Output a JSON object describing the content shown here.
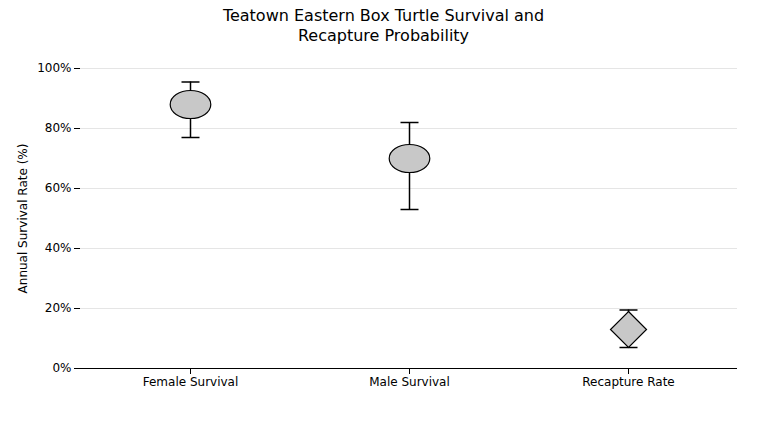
{
  "chart_data": {
    "type": "errorbar",
    "title": "Teatown Eastern Box Turtle Survival and\nRecapture Probability",
    "ylabel": "Annual Survival Rate (%)",
    "categories": [
      "Female Survival",
      "Male Survival",
      "Recapture Rate"
    ],
    "series": [
      {
        "marker": "ellipse",
        "color": "#c8c8c8",
        "values": [
          0.88,
          0.7,
          null
        ],
        "lower": [
          0.77,
          0.53,
          null
        ],
        "upper": [
          0.955,
          0.82,
          null
        ]
      },
      {
        "marker": "diamond",
        "color": "#c8c8c8",
        "values": [
          null,
          null,
          0.13
        ],
        "lower": [
          null,
          null,
          0.07
        ],
        "upper": [
          null,
          null,
          0.195
        ]
      }
    ],
    "color": "#000000",
    "ylim": [
      0,
      1.0
    ],
    "yticks": [
      {
        "value": 0,
        "label": "0%"
      },
      {
        "value": 0.2,
        "label": "20%"
      },
      {
        "value": 0.4,
        "label": "40%"
      },
      {
        "value": 0.6,
        "label": "60%"
      },
      {
        "value": 0.8,
        "label": "80%"
      },
      {
        "value": 1.0,
        "label": "100%"
      }
    ],
    "grid": true
  }
}
